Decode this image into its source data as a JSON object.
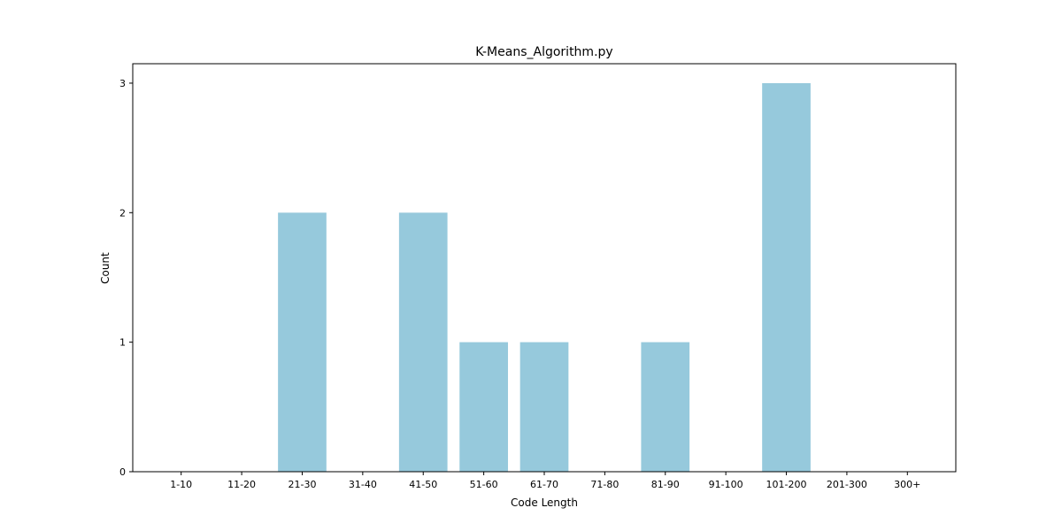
{
  "chart_data": {
    "type": "bar",
    "title": "K-Means_Algorithm.py",
    "xlabel": "Code Length",
    "ylabel": "Count",
    "categories": [
      "1-10",
      "11-20",
      "21-30",
      "31-40",
      "41-50",
      "51-60",
      "61-70",
      "71-80",
      "81-90",
      "91-100",
      "101-200",
      "201-300",
      "300+"
    ],
    "values": [
      0,
      0,
      2,
      0,
      2,
      1,
      1,
      0,
      1,
      0,
      3,
      0,
      0
    ],
    "ylim": [
      0,
      3.15
    ],
    "yticks": [
      0,
      1,
      2,
      3
    ],
    "bar_color": "#96c9dc",
    "grid": false,
    "legend": "none"
  }
}
